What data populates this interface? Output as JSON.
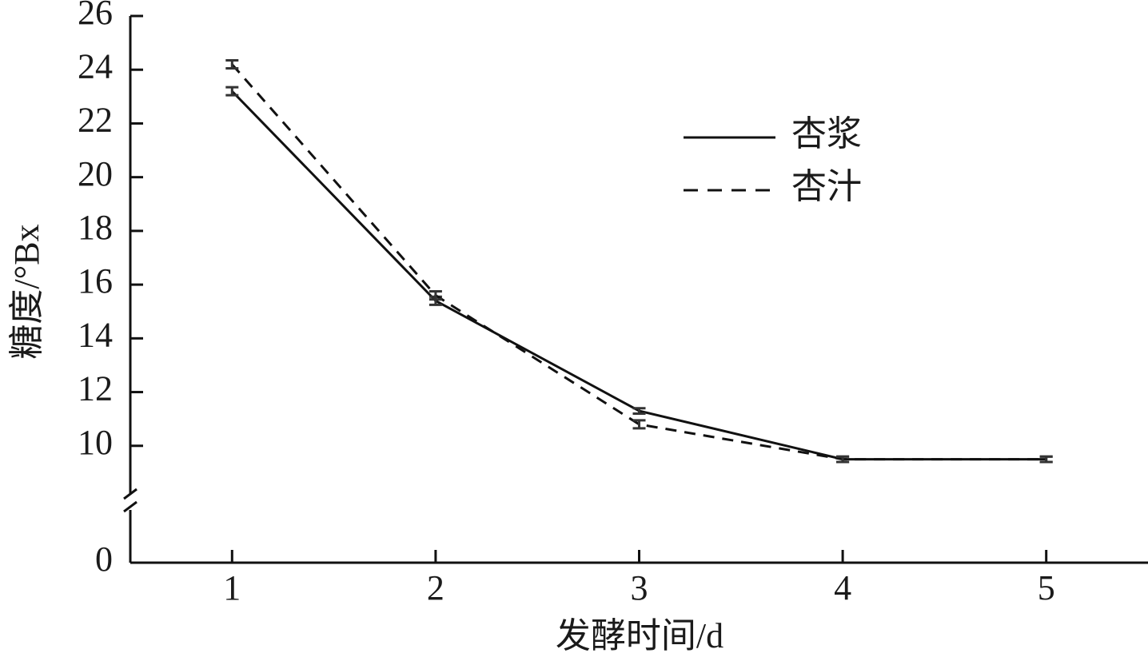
{
  "chart_data": {
    "type": "line",
    "x": [
      1,
      2,
      3,
      4,
      5
    ],
    "xlim": [
      0.5,
      5.5
    ],
    "xticks": [
      1,
      2,
      3,
      4,
      5
    ],
    "ylim": [
      0,
      26
    ],
    "ybreak": 8,
    "yticks": [
      0,
      10,
      12,
      14,
      16,
      18,
      20,
      22,
      24,
      26
    ],
    "x_label": "发酵时间/d",
    "y_label": "糖度/°Bx",
    "series": [
      {
        "name": "杏浆",
        "color": "#111111",
        "dash": "solid",
        "values": [
          23.2,
          15.4,
          11.3,
          9.5,
          9.5
        ],
        "errors": [
          0.15,
          0.15,
          0.1,
          0.1,
          0.1
        ]
      },
      {
        "name": "杏汁",
        "color": "#111111",
        "dash": "dashed",
        "values": [
          24.2,
          15.6,
          10.8,
          9.5,
          9.5
        ],
        "errors": [
          0.15,
          0.15,
          0.15,
          0.1,
          0.1
        ]
      }
    ]
  }
}
